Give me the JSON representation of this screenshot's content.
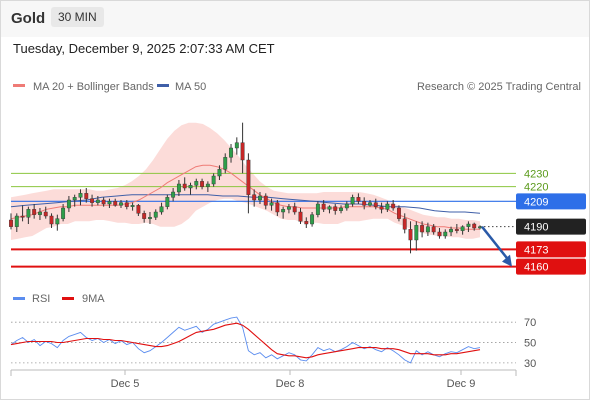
{
  "header": {
    "symbol": "Gold",
    "timeframe": "30 MIN"
  },
  "datetime": "Tuesday, December 9, 2025 2:07:33 AM CET",
  "legend": {
    "ma_bollinger_label": "MA 20 + Bollinger Bands",
    "ma50_label": "MA 50",
    "copyright": "Research © 2025 Trading Central",
    "rsi_label": "RSI",
    "rsi_ma_label": "9MA"
  },
  "colors": {
    "up_candle": "#2e9e4a",
    "down_candle": "#c62828",
    "ma20": "#ef7b76",
    "bollinger_fill": "#fbd0cc",
    "ma50": "#3f5fa8",
    "resistance": "#8cc63f",
    "pivot_blue": "#2e6fe8",
    "support_red": "#e01010",
    "last_price_bg": "#222222",
    "rsi_line": "#5b8def",
    "rsi_ma": "#e01010",
    "arrow": "#2a5aa8"
  },
  "chart_data": [
    {
      "type": "candlestick",
      "title": "",
      "x_tick_labels": [
        "Dec 5",
        "Dec 8",
        "Dec 9"
      ],
      "ylim": [
        4150,
        4285
      ],
      "ohlc": [
        [
          4195,
          4200,
          4188,
          4190
        ],
        [
          4190,
          4200,
          4186,
          4198
        ],
        [
          4198,
          4206,
          4194,
          4197
        ],
        [
          4197,
          4205,
          4192,
          4203
        ],
        [
          4203,
          4207,
          4196,
          4199
        ],
        [
          4199,
          4204,
          4195,
          4201
        ],
        [
          4201,
          4205,
          4196,
          4198
        ],
        [
          4198,
          4200,
          4189,
          4192
        ],
        [
          4192,
          4199,
          4187,
          4196
        ],
        [
          4196,
          4207,
          4194,
          4204
        ],
        [
          4204,
          4213,
          4201,
          4210
        ],
        [
          4210,
          4214,
          4205,
          4212
        ],
        [
          4212,
          4218,
          4206,
          4215
        ],
        [
          4215,
          4219,
          4208,
          4211
        ],
        [
          4211,
          4214,
          4205,
          4208
        ],
        [
          4208,
          4213,
          4206,
          4210
        ],
        [
          4210,
          4212,
          4205,
          4207
        ],
        [
          4207,
          4211,
          4204,
          4209
        ],
        [
          4209,
          4211,
          4205,
          4206
        ],
        [
          4206,
          4210,
          4204,
          4208
        ],
        [
          4208,
          4210,
          4203,
          4205
        ],
        [
          4205,
          4208,
          4202,
          4206
        ],
        [
          4206,
          4207,
          4198,
          4200
        ],
        [
          4200,
          4202,
          4193,
          4196
        ],
        [
          4196,
          4201,
          4192,
          4197
        ],
        [
          4197,
          4203,
          4195,
          4201
        ],
        [
          4201,
          4208,
          4199,
          4205
        ],
        [
          4205,
          4214,
          4203,
          4212
        ],
        [
          4212,
          4219,
          4209,
          4216
        ],
        [
          4216,
          4225,
          4213,
          4222
        ],
        [
          4222,
          4227,
          4217,
          4219
        ],
        [
          4219,
          4223,
          4214,
          4221
        ],
        [
          4221,
          4226,
          4218,
          4224
        ],
        [
          4224,
          4226,
          4218,
          4220
        ],
        [
          4220,
          4224,
          4216,
          4222
        ],
        [
          4222,
          4230,
          4220,
          4228
        ],
        [
          4228,
          4236,
          4225,
          4233
        ],
        [
          4233,
          4245,
          4230,
          4242
        ],
        [
          4242,
          4252,
          4238,
          4249
        ],
        [
          4249,
          4257,
          4244,
          4253
        ],
        [
          4253,
          4268,
          4230,
          4240
        ],
        [
          4240,
          4245,
          4200,
          4214
        ],
        [
          4214,
          4218,
          4205,
          4210
        ],
        [
          4210,
          4216,
          4207,
          4213
        ],
        [
          4213,
          4215,
          4203,
          4206
        ],
        [
          4206,
          4211,
          4202,
          4208
        ],
        [
          4208,
          4210,
          4198,
          4201
        ],
        [
          4201,
          4205,
          4196,
          4203
        ],
        [
          4203,
          4207,
          4200,
          4205
        ],
        [
          4205,
          4208,
          4199,
          4201
        ],
        [
          4201,
          4204,
          4192,
          4194
        ],
        [
          4194,
          4197,
          4189,
          4192
        ],
        [
          4192,
          4201,
          4190,
          4199
        ],
        [
          4199,
          4209,
          4197,
          4207
        ],
        [
          4207,
          4210,
          4201,
          4203
        ],
        [
          4203,
          4206,
          4200,
          4205
        ],
        [
          4205,
          4207,
          4199,
          4202
        ],
        [
          4202,
          4206,
          4200,
          4204
        ],
        [
          4204,
          4209,
          4202,
          4207
        ],
        [
          4207,
          4214,
          4205,
          4212
        ],
        [
          4212,
          4215,
          4207,
          4209
        ],
        [
          4209,
          4212,
          4203,
          4206
        ],
        [
          4206,
          4210,
          4205,
          4208
        ],
        [
          4208,
          4211,
          4203,
          4205
        ],
        [
          4205,
          4208,
          4200,
          4203
        ],
        [
          4203,
          4209,
          4201,
          4207
        ],
        [
          4207,
          4210,
          4202,
          4204
        ],
        [
          4204,
          4206,
          4194,
          4196
        ],
        [
          4196,
          4200,
          4185,
          4188
        ],
        [
          4188,
          4194,
          4170,
          4180
        ],
        [
          4180,
          4194,
          4172,
          4191
        ],
        [
          4191,
          4194,
          4182,
          4186
        ],
        [
          4186,
          4193,
          4183,
          4190
        ],
        [
          4190,
          4192,
          4184,
          4186
        ],
        [
          4186,
          4189,
          4181,
          4183
        ],
        [
          4183,
          4188,
          4181,
          4186
        ],
        [
          4186,
          4190,
          4183,
          4188
        ],
        [
          4188,
          4192,
          4185,
          4187
        ],
        [
          4187,
          4191,
          4184,
          4190
        ],
        [
          4190,
          4194,
          4186,
          4192
        ],
        [
          4192,
          4193,
          4187,
          4189
        ],
        [
          4189,
          4191,
          4188,
          4190
        ]
      ],
      "ma20": [
        4196,
        4197,
        4198,
        4199,
        4201,
        4203,
        4204,
        4205,
        4205,
        4206,
        4206,
        4206,
        4206,
        4206,
        4206,
        4206,
        4207,
        4208,
        4210,
        4213,
        4216,
        4219,
        4223,
        4226,
        4229,
        4232,
        4235,
        4236,
        4236,
        4235,
        4233,
        4230,
        4226,
        4222,
        4218,
        4214,
        4211,
        4208,
        4206,
        4205,
        4205,
        4204,
        4204,
        4204,
        4204,
        4204,
        4204,
        4205,
        4205,
        4205,
        4205,
        4205,
        4204,
        4203,
        4200,
        4198,
        4196,
        4194,
        4192,
        4191,
        4190,
        4190,
        4189,
        4189,
        4188,
        4188,
        4188
      ],
      "bb_upper": [
        4212,
        4213,
        4214,
        4215,
        4216,
        4217,
        4218,
        4218,
        4218,
        4218,
        4218,
        4218,
        4217,
        4217,
        4218,
        4219,
        4221,
        4224,
        4228,
        4233,
        4240,
        4248,
        4256,
        4262,
        4266,
        4268,
        4268,
        4267,
        4264,
        4260,
        4255,
        4249,
        4243,
        4236,
        4230,
        4224,
        4220,
        4217,
        4216,
        4215,
        4215,
        4215,
        4215,
        4215,
        4216,
        4216,
        4216,
        4216,
        4216,
        4216,
        4215,
        4214,
        4212,
        4210,
        4207,
        4205,
        4203,
        4201,
        4199,
        4198,
        4197,
        4197,
        4196,
        4196,
        4195,
        4195,
        4194
      ],
      "bb_lower": [
        4180,
        4181,
        4182,
        4183,
        4186,
        4189,
        4190,
        4192,
        4192,
        4194,
        4194,
        4194,
        4195,
        4195,
        4194,
        4193,
        4193,
        4192,
        4192,
        4193,
        4192,
        4190,
        4190,
        4190,
        4192,
        4196,
        4202,
        4205,
        4208,
        4210,
        4211,
        4211,
        4209,
        4208,
        4206,
        4204,
        4202,
        4199,
        4196,
        4195,
        4195,
        4193,
        4193,
        4193,
        4192,
        4192,
        4192,
        4194,
        4194,
        4194,
        4195,
        4196,
        4196,
        4196,
        4193,
        4191,
        4189,
        4187,
        4185,
        4184,
        4183,
        4183,
        4182,
        4182,
        4181,
        4181,
        4182
      ],
      "ma50": [
        4205,
        4206,
        4207,
        4208,
        4209,
        4210,
        4212,
        4213,
        4214,
        4214,
        4214,
        4214,
        4214,
        4214,
        4213,
        4213,
        4212,
        4212,
        4211,
        4210,
        4209,
        4208,
        4207,
        4207,
        4206,
        4205,
        4205,
        4204,
        4202,
        4201,
        4201,
        4200
      ],
      "levels": [
        {
          "value": 4230,
          "label": "4230",
          "kind": "resistance"
        },
        {
          "value": 4220,
          "label": "4220",
          "kind": "resistance"
        },
        {
          "value": 4209,
          "label": "4209",
          "kind": "pivot"
        },
        {
          "value": 4190,
          "label": "4190",
          "kind": "last"
        },
        {
          "value": 4173,
          "label": "4173",
          "kind": "support"
        },
        {
          "value": 4160,
          "label": "4160",
          "kind": "support"
        }
      ],
      "forecast_arrow": {
        "from": 4190,
        "to": 4160
      }
    },
    {
      "type": "line",
      "title": "",
      "ylim": [
        25,
        80
      ],
      "y_ticks": [
        "70",
        "50",
        "30"
      ],
      "y_tick_values": [
        70,
        50,
        30
      ],
      "series": [
        {
          "name": "RSI",
          "values": [
            48,
            52,
            55,
            50,
            53,
            47,
            51,
            49,
            45,
            52,
            56,
            58,
            60,
            55,
            52,
            54,
            50,
            53,
            49,
            52,
            48,
            50,
            44,
            40,
            42,
            46,
            50,
            55,
            60,
            65,
            62,
            64,
            66,
            60,
            63,
            68,
            70,
            72,
            74,
            75,
            65,
            42,
            38,
            40,
            35,
            38,
            34,
            37,
            40,
            38,
            33,
            32,
            38,
            45,
            42,
            44,
            41,
            43,
            46,
            50,
            47,
            44,
            46,
            43,
            41,
            45,
            42,
            38,
            33,
            30,
            42,
            38,
            41,
            38,
            36,
            39,
            41,
            40,
            43,
            46,
            44,
            45
          ]
        },
        {
          "name": "9MA",
          "values": [
            48,
            49,
            50,
            51,
            51,
            51,
            51,
            51,
            50,
            50,
            51,
            52,
            53,
            54,
            54,
            54,
            53,
            53,
            52,
            52,
            51,
            50,
            49,
            48,
            47,
            46,
            46,
            47,
            49,
            51,
            54,
            57,
            60,
            61,
            62,
            63,
            65,
            67,
            68,
            69,
            67,
            63,
            58,
            53,
            48,
            43,
            39,
            38,
            37,
            37,
            36,
            35,
            36,
            38,
            39,
            40,
            41,
            42,
            43,
            44,
            45,
            45,
            45,
            45,
            44,
            44,
            44,
            43,
            41,
            39,
            39,
            39,
            39,
            38,
            38,
            38,
            39,
            39,
            40,
            41,
            42,
            43
          ]
        }
      ]
    }
  ]
}
